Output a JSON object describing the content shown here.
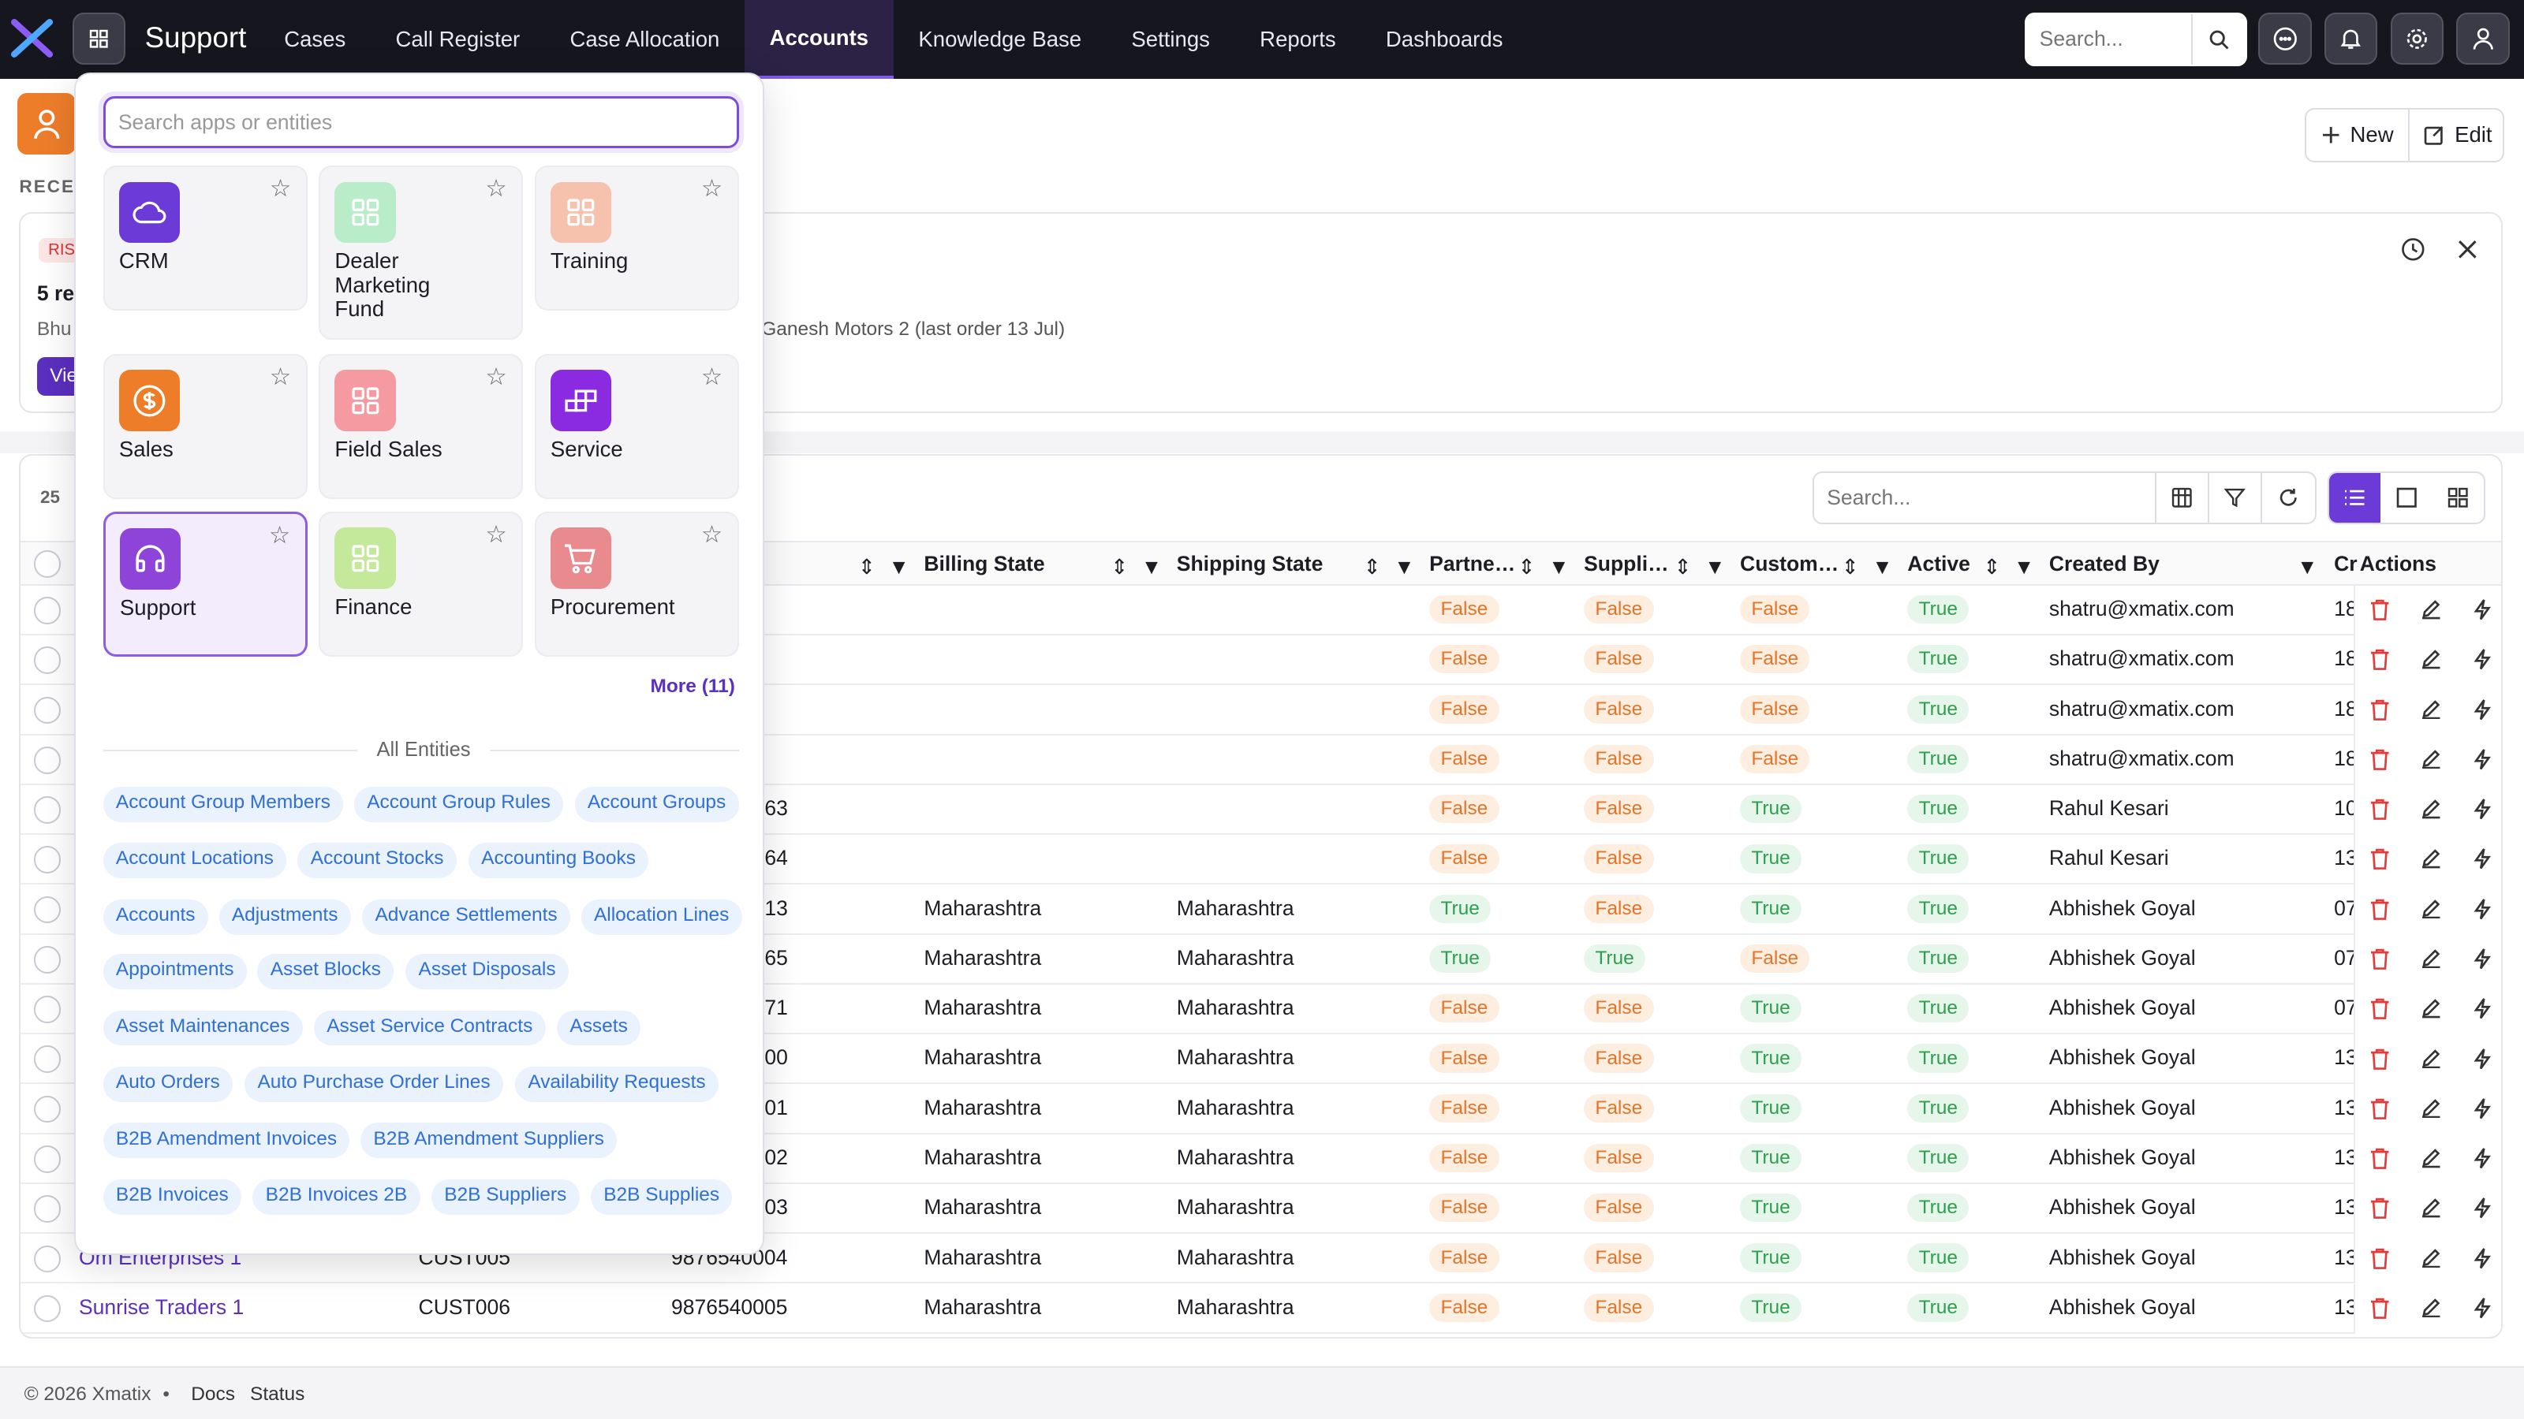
{
  "app": {
    "name": "Support"
  },
  "nav": {
    "links": [
      "Cases",
      "Call Register",
      "Case Allocation",
      "Accounts",
      "Knowledge Base",
      "Settings",
      "Reports",
      "Dashboards"
    ],
    "active": "Accounts",
    "search_placeholder": "Search..."
  },
  "page": {
    "recent_label": "RECE",
    "new_label": "New",
    "edit_label": "Edit"
  },
  "insight": {
    "badge": "RIS",
    "title": "5 re",
    "subtitle": "Bhu",
    "text": "Ganesh Motors 2 (last order 13 Jul)",
    "view_label": "Vie"
  },
  "table": {
    "count_label": "25",
    "search_placeholder": "Search...",
    "headers": [
      "Billing State",
      "Shipping State",
      "Partne…",
      "Suppli…",
      "Custom…",
      "Active",
      "Created By",
      "Cr",
      "Actions"
    ],
    "rows": [
      {
        "name": "",
        "code": "",
        "phone": "",
        "billing": "",
        "shipping": "",
        "partner": "False",
        "supplier": "False",
        "customer": "False",
        "active": "True",
        "created_by": "shatru@xmatix.com",
        "created": "18"
      },
      {
        "name": "",
        "code": "",
        "phone": "",
        "billing": "",
        "shipping": "",
        "partner": "False",
        "supplier": "False",
        "customer": "False",
        "active": "True",
        "created_by": "shatru@xmatix.com",
        "created": "18"
      },
      {
        "name": "",
        "code": "",
        "phone": "",
        "billing": "",
        "shipping": "",
        "partner": "False",
        "supplier": "False",
        "customer": "False",
        "active": "True",
        "created_by": "shatru@xmatix.com",
        "created": "18"
      },
      {
        "name": "",
        "code": "",
        "phone": "",
        "billing": "",
        "shipping": "",
        "partner": "False",
        "supplier": "False",
        "customer": "False",
        "active": "True",
        "created_by": "shatru@xmatix.com",
        "created": "18"
      },
      {
        "name": "",
        "code": "",
        "phone": "63",
        "billing": "",
        "shipping": "",
        "partner": "False",
        "supplier": "False",
        "customer": "True",
        "active": "True",
        "created_by": "Rahul Kesari",
        "created": "10"
      },
      {
        "name": "",
        "code": "",
        "phone": "64",
        "billing": "",
        "shipping": "",
        "partner": "False",
        "supplier": "False",
        "customer": "True",
        "active": "True",
        "created_by": "Rahul Kesari",
        "created": "13"
      },
      {
        "name": "",
        "code": "",
        "phone": "13",
        "billing": "Maharashtra",
        "shipping": "Maharashtra",
        "partner": "True",
        "supplier": "False",
        "customer": "True",
        "active": "True",
        "created_by": "Abhishek Goyal",
        "created": "07"
      },
      {
        "name": "",
        "code": "",
        "phone": "65",
        "billing": "Maharashtra",
        "shipping": "Maharashtra",
        "partner": "True",
        "supplier": "True",
        "customer": "False",
        "active": "True",
        "created_by": "Abhishek Goyal",
        "created": "07"
      },
      {
        "name": "",
        "code": "",
        "phone": "71",
        "billing": "Maharashtra",
        "shipping": "Maharashtra",
        "partner": "False",
        "supplier": "False",
        "customer": "True",
        "active": "True",
        "created_by": "Abhishek Goyal",
        "created": "07"
      },
      {
        "name": "",
        "code": "",
        "phone": "00",
        "billing": "Maharashtra",
        "shipping": "Maharashtra",
        "partner": "False",
        "supplier": "False",
        "customer": "True",
        "active": "True",
        "created_by": "Abhishek Goyal",
        "created": "13"
      },
      {
        "name": "",
        "code": "",
        "phone": "01",
        "billing": "Maharashtra",
        "shipping": "Maharashtra",
        "partner": "False",
        "supplier": "False",
        "customer": "True",
        "active": "True",
        "created_by": "Abhishek Goyal",
        "created": "13"
      },
      {
        "name": "",
        "code": "",
        "phone": "02",
        "billing": "Maharashtra",
        "shipping": "Maharashtra",
        "partner": "False",
        "supplier": "False",
        "customer": "True",
        "active": "True",
        "created_by": "Abhishek Goyal",
        "created": "13"
      },
      {
        "name": "",
        "code": "",
        "phone": "03",
        "billing": "Maharashtra",
        "shipping": "Maharashtra",
        "partner": "False",
        "supplier": "False",
        "customer": "True",
        "active": "True",
        "created_by": "Abhishek Goyal",
        "created": "13"
      },
      {
        "name": "Om Enterprises 1",
        "code": "CUST005",
        "phone": "9876540004",
        "billing": "Maharashtra",
        "shipping": "Maharashtra",
        "partner": "False",
        "supplier": "False",
        "customer": "True",
        "active": "True",
        "created_by": "Abhishek Goyal",
        "created": "13"
      },
      {
        "name": "Sunrise Traders 1",
        "code": "CUST006",
        "phone": "9876540005",
        "billing": "Maharashtra",
        "shipping": "Maharashtra",
        "partner": "False",
        "supplier": "False",
        "customer": "True",
        "active": "True",
        "created_by": "Abhishek Goyal",
        "created": "13"
      }
    ]
  },
  "footer": {
    "copyright": "© 2026 Xmatix",
    "dot": "•",
    "docs": "Docs",
    "status": "Status"
  },
  "apps_panel": {
    "search_placeholder": "Search apps or entities",
    "apps": [
      {
        "label": "CRM",
        "icon": "cloud-icon",
        "color": "#6c3ad6"
      },
      {
        "label": "Dealer Marketing Fund",
        "icon": "grid-icon",
        "color": "#b9ecc8"
      },
      {
        "label": "Training",
        "icon": "grid-icon",
        "color": "#f7c2ad"
      },
      {
        "label": "Sales",
        "icon": "dollar-icon",
        "color": "#ee7d2a"
      },
      {
        "label": "Field Sales",
        "icon": "grid-icon",
        "color": "#f59aa0"
      },
      {
        "label": "Service",
        "icon": "blocks-icon",
        "color": "#8a2be2"
      },
      {
        "label": "Support",
        "icon": "headset-icon",
        "color": "#8e44d8"
      },
      {
        "label": "Finance",
        "icon": "grid-icon",
        "color": "#c5e99a"
      },
      {
        "label": "Procurement",
        "icon": "cart-icon",
        "color": "#e88a8e"
      }
    ],
    "more_label": "More (11)",
    "entities_label": "All Entities",
    "entities": [
      "Account Group Members",
      "Account Group Rules",
      "Account Groups",
      "Account Locations",
      "Account Stocks",
      "Accounting Books",
      "Accounts",
      "Adjustments",
      "Advance Settlements",
      "Allocation Lines",
      "Appointments",
      "Asset Blocks",
      "Asset Disposals",
      "Asset Maintenances",
      "Asset Service Contracts",
      "Assets",
      "Auto Orders",
      "Auto Purchase Order Lines",
      "Availability Requests",
      "B2B Amendment Invoices",
      "B2B Amendment Suppliers",
      "B2B Invoices",
      "B2B Invoices 2B",
      "B2B Suppliers",
      "B2B Supplies"
    ]
  }
}
